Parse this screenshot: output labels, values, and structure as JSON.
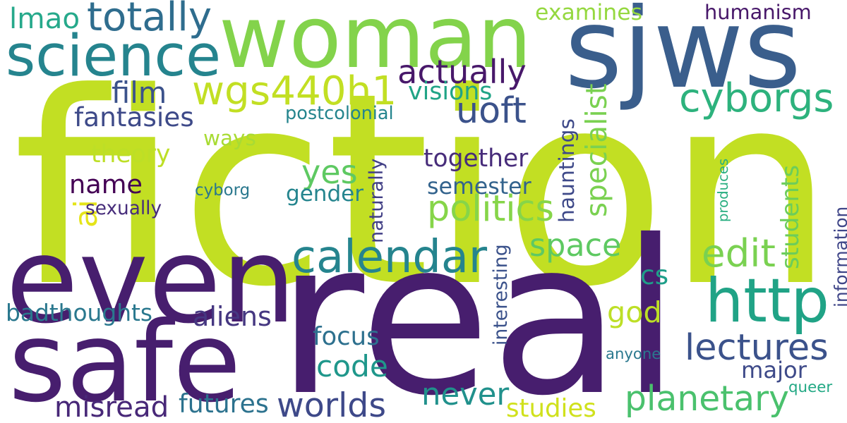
{
  "words": [
    {
      "text": "fiction",
      "color": "#c2df23"
    },
    {
      "text": "real",
      "color": "#471e6e"
    },
    {
      "text": "woman",
      "color": "#83d34b"
    },
    {
      "text": "sjws",
      "color": "#3a5e8c"
    },
    {
      "text": "even",
      "color": "#471e6e"
    },
    {
      "text": "safe",
      "color": "#471e6e"
    },
    {
      "text": "science",
      "color": "#25848e"
    },
    {
      "text": "wgs440h1",
      "color": "#c2df23"
    },
    {
      "text": "totally",
      "color": "#2f6d8e"
    },
    {
      "text": "lmao",
      "color": "#26a98b"
    },
    {
      "text": "examines",
      "color": "#95d840"
    },
    {
      "text": "humanism",
      "color": "#48186a"
    },
    {
      "text": "actually",
      "color": "#48186a"
    },
    {
      "text": "cyborgs",
      "color": "#2db27d"
    },
    {
      "text": "uoft",
      "color": "#3b528b"
    },
    {
      "text": "film",
      "color": "#3b528b"
    },
    {
      "text": "visions",
      "color": "#20a486"
    },
    {
      "text": "fantasies",
      "color": "#3e4a89"
    },
    {
      "text": "postcolonial",
      "color": "#25858e"
    },
    {
      "text": "specialist",
      "color": "#7ad151"
    },
    {
      "text": "hauntings",
      "color": "#3e4989"
    },
    {
      "text": "produces",
      "color": "#28ae80"
    },
    {
      "text": "theory",
      "color": "#bddf26"
    },
    {
      "text": "ways",
      "color": "#a8db34"
    },
    {
      "text": "yes",
      "color": "#5ec962"
    },
    {
      "text": "together",
      "color": "#472c7a"
    },
    {
      "text": "name",
      "color": "#440154"
    },
    {
      "text": "semester",
      "color": "#33638d"
    },
    {
      "text": "gender",
      "color": "#25858e"
    },
    {
      "text": "politics",
      "color": "#86d549"
    },
    {
      "text": "cyborg",
      "color": "#2a788e"
    },
    {
      "text": "naturally",
      "color": "#424086"
    },
    {
      "text": "students",
      "color": "#6ccd5a"
    },
    {
      "text": "information",
      "color": "#404688"
    },
    {
      "text": "ai",
      "color": "#e5e419"
    },
    {
      "text": "sexually",
      "color": "#472d7b"
    },
    {
      "text": "calendar",
      "color": "#25848e"
    },
    {
      "text": "space",
      "color": "#5ec962"
    },
    {
      "text": "http",
      "color": "#20a386"
    },
    {
      "text": "edit",
      "color": "#7ad151"
    },
    {
      "text": "interesting",
      "color": "#3b528b"
    },
    {
      "text": "cs",
      "color": "#1f9e89"
    },
    {
      "text": "badthoughts",
      "color": "#2a788e"
    },
    {
      "text": "aliens",
      "color": "#453781"
    },
    {
      "text": "god",
      "color": "#bddf26"
    },
    {
      "text": "focus",
      "color": "#2d708e"
    },
    {
      "text": "lectures",
      "color": "#3b528b"
    },
    {
      "text": "code",
      "color": "#1f978b"
    },
    {
      "text": "anyone",
      "color": "#2a788e"
    },
    {
      "text": "major",
      "color": "#3e4a89"
    },
    {
      "text": "never",
      "color": "#21918c"
    },
    {
      "text": "planetary",
      "color": "#4ac16d"
    },
    {
      "text": "queer",
      "color": "#22a884"
    },
    {
      "text": "misread",
      "color": "#482878"
    },
    {
      "text": "futures",
      "color": "#2c728e"
    },
    {
      "text": "worlds",
      "color": "#3e4989"
    },
    {
      "text": "studies",
      "color": "#d0e11c"
    }
  ]
}
